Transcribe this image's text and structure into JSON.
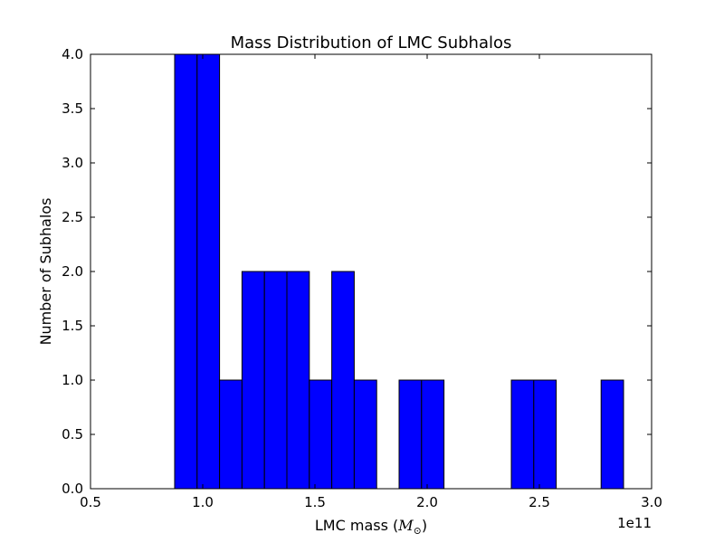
{
  "chart_data": {
    "type": "bar",
    "title": "Mass Distribution of LMC Subhalos",
    "xlabel_prefix": "LMC mass (",
    "xlabel_math": "M",
    "xlabel_math_sub": "⊙",
    "xlabel_suffix": ")",
    "ylabel": "Number of Subhalos",
    "x_offset_label": "1e11",
    "xlim": [
      0.5,
      3.0
    ],
    "ylim": [
      0.0,
      4.0
    ],
    "x_ticks": [
      0.5,
      1.0,
      1.5,
      2.0,
      2.5,
      3.0
    ],
    "x_tick_labels": [
      "0.5",
      "1.0",
      "1.5",
      "2.0",
      "2.5",
      "3.0"
    ],
    "y_ticks": [
      0.0,
      0.5,
      1.0,
      1.5,
      2.0,
      2.5,
      3.0,
      3.5,
      4.0
    ],
    "y_tick_labels": [
      "0.0",
      "0.5",
      "1.0",
      "1.5",
      "2.0",
      "2.5",
      "3.0",
      "3.5",
      "4.0"
    ],
    "bin_edges": [
      0.875,
      0.975,
      1.075,
      1.175,
      1.275,
      1.375,
      1.475,
      1.575,
      1.675,
      1.775,
      1.875,
      1.975,
      2.075,
      2.175,
      2.275,
      2.375,
      2.475,
      2.575,
      2.675,
      2.775,
      2.875
    ],
    "counts": [
      4,
      4,
      1,
      2,
      2,
      2,
      1,
      2,
      1,
      0,
      1,
      1,
      0,
      0,
      0,
      1,
      1,
      0,
      0,
      1
    ],
    "bar_color": "#0000ff",
    "edge_color": "#000000",
    "grid": false,
    "legend": "none"
  }
}
